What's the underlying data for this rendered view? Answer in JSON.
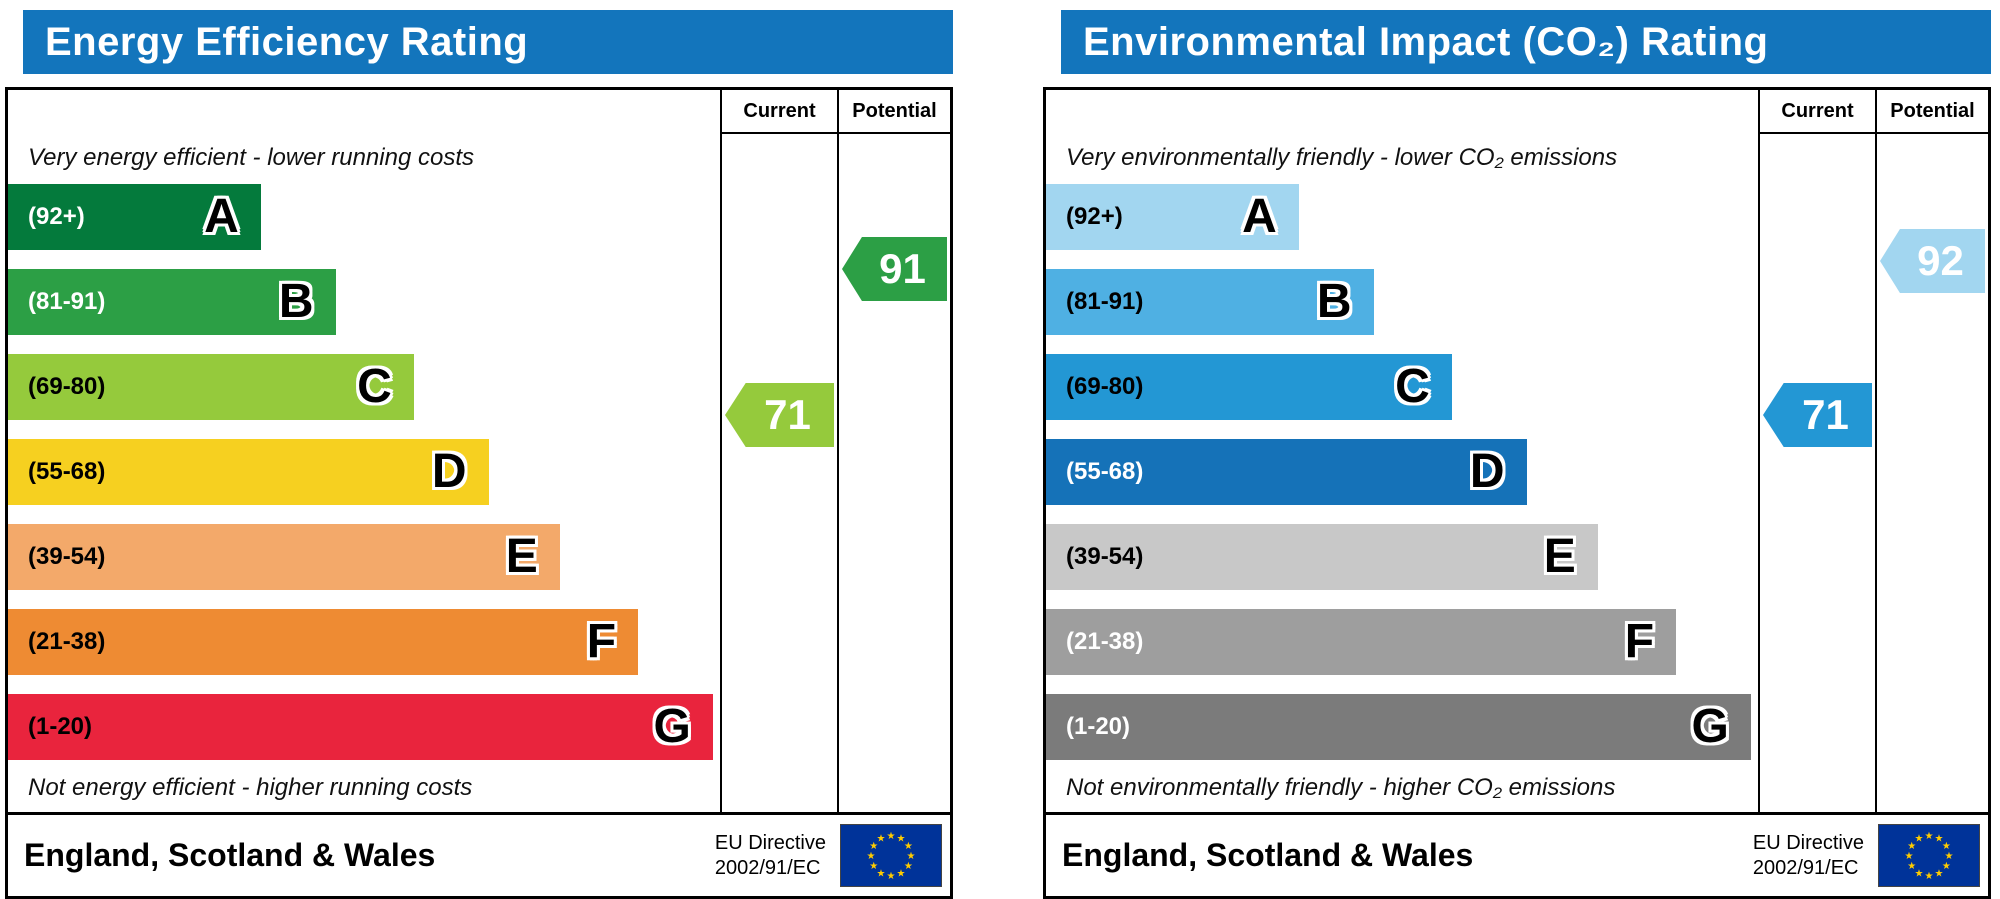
{
  "colors": {
    "header_bg": "#1375bc",
    "border": "#000000",
    "flag_bg": "#003399",
    "flag_star": "#ffcc00"
  },
  "chart_data": [
    {
      "type": "bar",
      "title": "Energy Efficiency Rating",
      "columns": {
        "current": "Current",
        "potential": "Potential"
      },
      "caption_top": "Very energy efficient - lower running costs",
      "caption_bottom": "Not energy efficient - higher running costs",
      "bands": [
        {
          "letter": "A",
          "range": "(92+)",
          "color": "#047a3c",
          "range_color": "#ffffff",
          "width_pct": 35.5
        },
        {
          "letter": "B",
          "range": "(81-91)",
          "color": "#2c9f45",
          "range_color": "#ffffff",
          "width_pct": 46
        },
        {
          "letter": "C",
          "range": "(69-80)",
          "color": "#95ca3c",
          "range_color": "#000000",
          "width_pct": 57
        },
        {
          "letter": "D",
          "range": "(55-68)",
          "color": "#f6d020",
          "range_color": "#000000",
          "width_pct": 67.5
        },
        {
          "letter": "E",
          "range": "(39-54)",
          "color": "#f3a96a",
          "range_color": "#000000",
          "width_pct": 77.5
        },
        {
          "letter": "F",
          "range": "(21-38)",
          "color": "#ee8b33",
          "range_color": "#000000",
          "width_pct": 88.5
        },
        {
          "letter": "G",
          "range": "(1-20)",
          "color": "#e9243d",
          "range_color": "#000000",
          "width_pct": 99
        }
      ],
      "current": {
        "value": 71,
        "color": "#95ca3c"
      },
      "potential": {
        "value": 91,
        "color": "#2c9f45"
      },
      "footer": {
        "region": "England, Scotland & Wales",
        "directive_line1": "EU Directive",
        "directive_line2": "2002/91/EC"
      }
    },
    {
      "type": "bar",
      "title": "Environmental Impact (CO₂) Rating",
      "columns": {
        "current": "Current",
        "potential": "Potential"
      },
      "caption_top": "Very environmentally friendly - lower CO₂ emissions",
      "caption_bottom": "Not environmentally friendly - higher CO₂ emissions",
      "bands": [
        {
          "letter": "A",
          "range": "(92+)",
          "color": "#a2d6f0",
          "range_color": "#000000",
          "width_pct": 35.5
        },
        {
          "letter": "B",
          "range": "(81-91)",
          "color": "#4fb0e3",
          "range_color": "#000000",
          "width_pct": 46
        },
        {
          "letter": "C",
          "range": "(69-80)",
          "color": "#2397d4",
          "range_color": "#000000",
          "width_pct": 57
        },
        {
          "letter": "D",
          "range": "(55-68)",
          "color": "#1572b8",
          "range_color": "#ffffff",
          "width_pct": 67.5
        },
        {
          "letter": "E",
          "range": "(39-54)",
          "color": "#c8c8c8",
          "range_color": "#000000",
          "width_pct": 77.5
        },
        {
          "letter": "F",
          "range": "(21-38)",
          "color": "#9e9e9e",
          "range_color": "#ffffff",
          "width_pct": 88.5
        },
        {
          "letter": "G",
          "range": "(1-20)",
          "color": "#7b7b7b",
          "range_color": "#ffffff",
          "width_pct": 99
        }
      ],
      "current": {
        "value": 71,
        "color": "#2397d4"
      },
      "potential": {
        "value": 92,
        "color": "#a2d6f0"
      },
      "footer": {
        "region": "England, Scotland & Wales",
        "directive_line1": "EU Directive",
        "directive_line2": "2002/91/EC"
      }
    }
  ]
}
